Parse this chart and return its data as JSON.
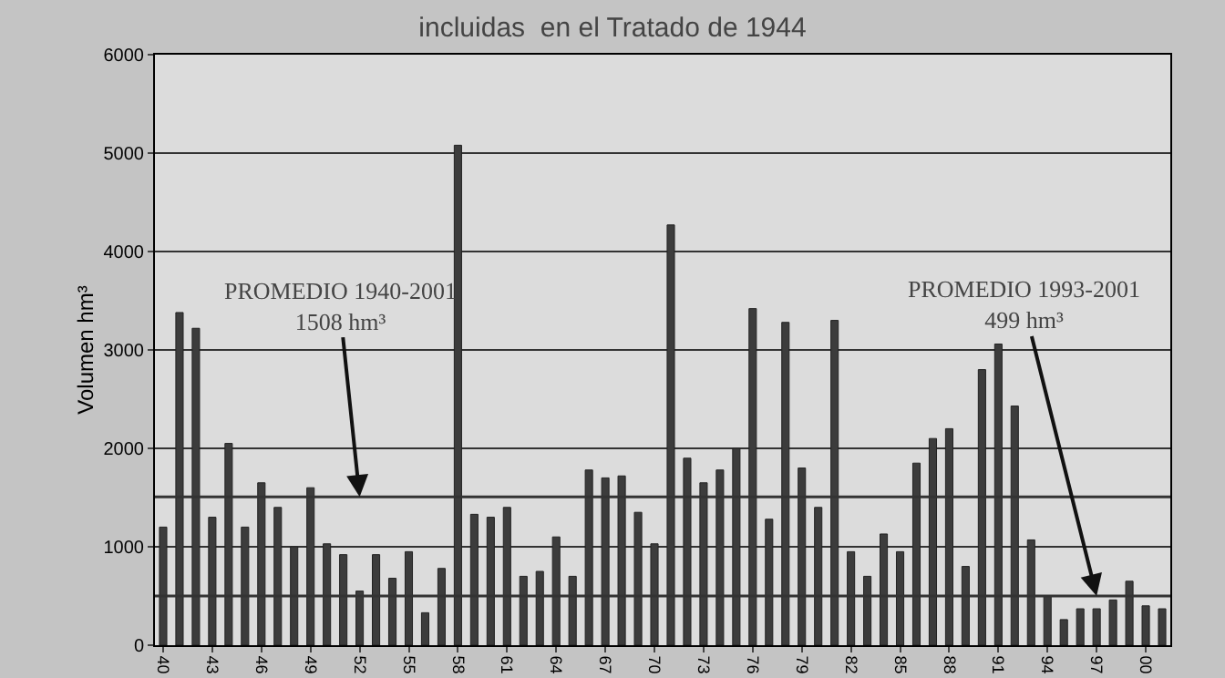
{
  "chart_data": {
    "type": "bar",
    "title": "incluidas  en el Tratado de 1944",
    "ylabel": "Volumen hm³",
    "categories": [
      "40",
      null,
      null,
      "43",
      null,
      null,
      "46",
      null,
      null,
      "49",
      null,
      null,
      "52",
      null,
      null,
      "55",
      null,
      null,
      "58",
      null,
      null,
      "61",
      null,
      null,
      "64",
      null,
      null,
      "67",
      null,
      null,
      "70",
      null,
      null,
      "73",
      null,
      null,
      "76",
      null,
      null,
      "79",
      null,
      null,
      "82",
      null,
      null,
      "85",
      null,
      null,
      "88",
      null,
      null,
      "91",
      null,
      null,
      "94",
      null,
      null,
      "97",
      null,
      null,
      "00",
      null
    ],
    "values": [
      1200,
      3380,
      3220,
      1300,
      2050,
      1200,
      1650,
      1400,
      1000,
      1600,
      1030,
      920,
      550,
      920,
      680,
      950,
      330,
      780,
      5080,
      1330,
      1300,
      1400,
      700,
      750,
      1100,
      700,
      1780,
      1700,
      1720,
      1350,
      1030,
      4270,
      1900,
      1650,
      1780,
      2000,
      3420,
      1280,
      3280,
      1800,
      1400,
      3300,
      950,
      700,
      1130,
      950,
      1850,
      2100,
      2200,
      800,
      2800,
      3060,
      2430,
      1070,
      500,
      260,
      370,
      370,
      460,
      650,
      400,
      370
    ],
    "color": "#3c3c3c",
    "ylim": [
      0,
      6000
    ],
    "yticks": [
      0,
      1000,
      2000,
      3000,
      4000,
      5000,
      6000
    ],
    "grid": "y",
    "ref_lines": [
      {
        "axis": "y",
        "value": 1508,
        "color": "#333333"
      },
      {
        "axis": "y",
        "value": 499,
        "color": "#333333"
      }
    ],
    "annotations": [
      {
        "text": "PROMEDIO 1940-2001\n1508 hm³",
        "x": "52",
        "y": 1508
      },
      {
        "text": "PROMEDIO 1993-2001\n499 hm³",
        "x": "97",
        "y": 499
      }
    ]
  }
}
